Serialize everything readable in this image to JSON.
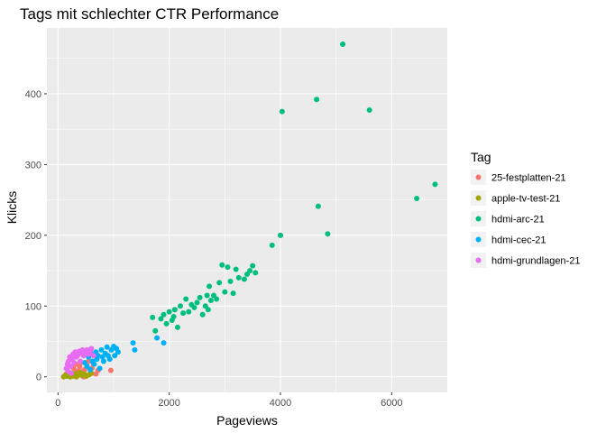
{
  "chart_data": {
    "type": "scatter",
    "title": "Tags mit schlechter CTR Performance",
    "xlabel": "Pageviews",
    "ylabel": "Klicks",
    "xlim": [
      -200,
      7000
    ],
    "ylim": [
      -22,
      493
    ],
    "x_ticks": [
      0,
      2000,
      4000,
      6000
    ],
    "x_tick_labels": [
      "0",
      "2000",
      "4000",
      "6000"
    ],
    "y_ticks": [
      0,
      100,
      200,
      300,
      400
    ],
    "y_tick_labels": [
      "0",
      "100",
      "200",
      "300",
      "400"
    ],
    "grid": true,
    "legend": {
      "title": "Tag",
      "position": "right"
    },
    "series": [
      {
        "name": "25-festplatten-21",
        "color": "#F8766D",
        "points": [
          [
            250,
            5
          ],
          [
            280,
            12
          ],
          [
            320,
            18
          ],
          [
            350,
            8
          ],
          [
            370,
            3
          ],
          [
            390,
            14
          ],
          [
            410,
            20
          ],
          [
            430,
            7
          ],
          [
            460,
            0
          ],
          [
            480,
            10
          ],
          [
            500,
            2
          ],
          [
            520,
            15
          ],
          [
            550,
            22
          ],
          [
            580,
            5
          ],
          [
            610,
            12
          ],
          [
            640,
            18
          ],
          [
            680,
            4
          ],
          [
            720,
            9
          ],
          [
            950,
            9
          ]
        ]
      },
      {
        "name": "apple-tv-test-21",
        "color": "#A3A500",
        "points": [
          [
            100,
            0
          ],
          [
            130,
            2
          ],
          [
            160,
            1
          ],
          [
            190,
            3
          ],
          [
            220,
            0
          ],
          [
            250,
            4
          ],
          [
            280,
            2
          ],
          [
            310,
            5
          ],
          [
            340,
            1
          ],
          [
            370,
            3
          ],
          [
            400,
            6
          ],
          [
            430,
            2
          ],
          [
            470,
            4
          ],
          [
            510,
            1
          ],
          [
            560,
            3
          ],
          [
            600,
            5
          ],
          [
            150,
            4
          ],
          [
            200,
            6
          ],
          [
            260,
            1
          ],
          [
            330,
            0
          ]
        ]
      },
      {
        "name": "hdmi-arc-21",
        "color": "#00BF7D",
        "points": [
          [
            1700,
            84
          ],
          [
            1750,
            65
          ],
          [
            1850,
            82
          ],
          [
            1900,
            88
          ],
          [
            1950,
            75
          ],
          [
            2000,
            92
          ],
          [
            2050,
            80
          ],
          [
            2080,
            85
          ],
          [
            2100,
            95
          ],
          [
            2150,
            70
          ],
          [
            2200,
            100
          ],
          [
            2250,
            90
          ],
          [
            2300,
            110
          ],
          [
            2350,
            92
          ],
          [
            2400,
            102
          ],
          [
            2450,
            98
          ],
          [
            2500,
            105
          ],
          [
            2550,
            112
          ],
          [
            2600,
            88
          ],
          [
            2650,
            100
          ],
          [
            2680,
            115
          ],
          [
            2700,
            95
          ],
          [
            2720,
            128
          ],
          [
            2750,
            108
          ],
          [
            2800,
            115
          ],
          [
            2850,
            110
          ],
          [
            2900,
            133
          ],
          [
            2950,
            158
          ],
          [
            3000,
            120
          ],
          [
            3050,
            155
          ],
          [
            3100,
            135
          ],
          [
            3150,
            118
          ],
          [
            3200,
            152
          ],
          [
            3250,
            140
          ],
          [
            3350,
            138
          ],
          [
            3400,
            145
          ],
          [
            3450,
            150
          ],
          [
            3500,
            157
          ],
          [
            3550,
            147
          ],
          [
            3850,
            186
          ],
          [
            4000,
            200
          ],
          [
            4030,
            375
          ],
          [
            4650,
            392
          ],
          [
            4680,
            241
          ],
          [
            4850,
            202
          ],
          [
            5120,
            470
          ],
          [
            5600,
            377
          ],
          [
            6450,
            252
          ],
          [
            6780,
            272
          ]
        ]
      },
      {
        "name": "hdmi-cec-21",
        "color": "#00B0F6",
        "points": [
          [
            480,
            20
          ],
          [
            520,
            15
          ],
          [
            550,
            28
          ],
          [
            580,
            10
          ],
          [
            600,
            32
          ],
          [
            620,
            22
          ],
          [
            650,
            18
          ],
          [
            680,
            35
          ],
          [
            700,
            25
          ],
          [
            720,
            30
          ],
          [
            750,
            12
          ],
          [
            780,
            38
          ],
          [
            800,
            28
          ],
          [
            820,
            22
          ],
          [
            850,
            33
          ],
          [
            880,
            42
          ],
          [
            900,
            30
          ],
          [
            930,
            25
          ],
          [
            960,
            38
          ],
          [
            1000,
            43
          ],
          [
            1020,
            30
          ],
          [
            1050,
            40
          ],
          [
            1080,
            35
          ],
          [
            1350,
            48
          ],
          [
            1380,
            38
          ],
          [
            1780,
            55
          ],
          [
            1900,
            48
          ]
        ]
      },
      {
        "name": "hdmi-grundlagen-21",
        "color": "#E76BF3",
        "points": [
          [
            150,
            12
          ],
          [
            170,
            18
          ],
          [
            190,
            22
          ],
          [
            210,
            28
          ],
          [
            230,
            15
          ],
          [
            250,
            25
          ],
          [
            270,
            32
          ],
          [
            290,
            20
          ],
          [
            310,
            35
          ],
          [
            330,
            28
          ],
          [
            350,
            30
          ],
          [
            380,
            36
          ],
          [
            400,
            22
          ],
          [
            420,
            33
          ],
          [
            440,
            38
          ],
          [
            460,
            30
          ],
          [
            490,
            35
          ],
          [
            520,
            38
          ],
          [
            550,
            32
          ],
          [
            580,
            36
          ],
          [
            600,
            40
          ],
          [
            640,
            30
          ],
          [
            180,
            8
          ],
          [
            240,
            5
          ]
        ]
      }
    ]
  }
}
